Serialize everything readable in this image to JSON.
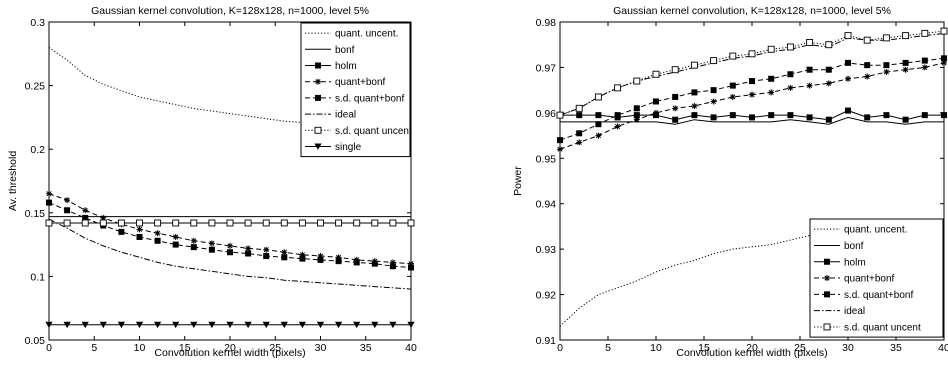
{
  "chart_data": [
    {
      "type": "line",
      "title": "Gaussian kernel convolution, K=128x128, n=1000, level 5%",
      "xlabel": "Convolution kernel width (pixels)",
      "ylabel": "Av. threshold",
      "xlim": [
        0,
        40
      ],
      "ylim": [
        0.05,
        0.3
      ],
      "xticks": [
        "0",
        "5",
        "10",
        "15",
        "20",
        "25",
        "30",
        "35",
        "40"
      ],
      "yticks": [
        "0.05",
        "0.1",
        "0.15",
        "0.2",
        "0.25",
        "0.3"
      ],
      "legend_position": "top-right",
      "x": [
        0,
        2,
        4,
        6,
        8,
        10,
        12,
        14,
        16,
        18,
        20,
        22,
        24,
        26,
        28,
        30,
        32,
        34,
        36,
        38,
        40
      ],
      "series": [
        {
          "name": "quant. uncent.",
          "style": "dotted",
          "marker": "none",
          "values": [
            0.28,
            0.27,
            0.258,
            0.251,
            0.246,
            0.241,
            0.238,
            0.235,
            0.232,
            0.23,
            0.228,
            0.226,
            0.224,
            0.222,
            0.221,
            0.22,
            0.219,
            0.217,
            0.216,
            0.215,
            0.213
          ]
        },
        {
          "name": "bonf",
          "style": "solid",
          "marker": "none",
          "values": [
            0.147,
            0.147,
            0.147,
            0.147,
            0.147,
            0.147,
            0.147,
            0.147,
            0.147,
            0.147,
            0.147,
            0.147,
            0.147,
            0.147,
            0.147,
            0.147,
            0.147,
            0.147,
            0.147,
            0.147,
            0.147
          ]
        },
        {
          "name": "holm",
          "style": "solid",
          "marker": "square-filled",
          "values": [
            0.142,
            0.142,
            0.142,
            0.142,
            0.142,
            0.142,
            0.142,
            0.142,
            0.142,
            0.142,
            0.142,
            0.142,
            0.142,
            0.142,
            0.142,
            0.142,
            0.142,
            0.142,
            0.142,
            0.142,
            0.142
          ]
        },
        {
          "name": "quant+bonf",
          "style": "dashed",
          "marker": "star",
          "values": [
            0.165,
            0.16,
            0.152,
            0.146,
            0.141,
            0.137,
            0.134,
            0.131,
            0.128,
            0.126,
            0.124,
            0.122,
            0.121,
            0.119,
            0.117,
            0.116,
            0.115,
            0.113,
            0.112,
            0.111,
            0.11
          ]
        },
        {
          "name": "s.d. quant+bonf",
          "style": "dashed",
          "marker": "square-filled",
          "values": [
            0.158,
            0.152,
            0.146,
            0.14,
            0.135,
            0.131,
            0.128,
            0.125,
            0.123,
            0.121,
            0.119,
            0.118,
            0.116,
            0.115,
            0.114,
            0.113,
            0.112,
            0.111,
            0.11,
            0.108,
            0.107
          ]
        },
        {
          "name": "ideal",
          "style": "dashdot",
          "marker": "none",
          "values": [
            0.145,
            0.138,
            0.13,
            0.124,
            0.119,
            0.115,
            0.111,
            0.108,
            0.106,
            0.104,
            0.102,
            0.1,
            0.099,
            0.097,
            0.096,
            0.095,
            0.094,
            0.093,
            0.092,
            0.091,
            0.09
          ]
        },
        {
          "name": "s.d. quant uncent",
          "style": "dotted",
          "marker": "square-open",
          "values": [
            0.142,
            0.142,
            0.142,
            0.142,
            0.142,
            0.142,
            0.142,
            0.142,
            0.142,
            0.142,
            0.142,
            0.142,
            0.142,
            0.142,
            0.142,
            0.142,
            0.142,
            0.142,
            0.142,
            0.142,
            0.142
          ]
        },
        {
          "name": "single",
          "style": "solid",
          "marker": "triangle-down",
          "values": [
            0.062,
            0.062,
            0.062,
            0.062,
            0.062,
            0.062,
            0.062,
            0.062,
            0.062,
            0.062,
            0.062,
            0.062,
            0.062,
            0.062,
            0.062,
            0.062,
            0.062,
            0.062,
            0.062,
            0.062,
            0.062
          ]
        }
      ]
    },
    {
      "type": "line",
      "title": "Gaussian kernel convolution, K=128x128, n=1000, level 5%",
      "xlabel": "Convolution kernel width (pixels)",
      "ylabel": "Power",
      "xlim": [
        0,
        40
      ],
      "ylim": [
        0.91,
        0.98
      ],
      "xticks": [
        "0",
        "5",
        "10",
        "15",
        "20",
        "25",
        "30",
        "35",
        "40"
      ],
      "yticks": [
        "0.91",
        "0.92",
        "0.93",
        "0.94",
        "0.95",
        "0.96",
        "0.97",
        "0.98"
      ],
      "legend_position": "bottom-right",
      "x": [
        0,
        2,
        4,
        6,
        8,
        10,
        12,
        14,
        16,
        18,
        20,
        22,
        24,
        26,
        28,
        30,
        32,
        34,
        36,
        38,
        40
      ],
      "series": [
        {
          "name": "quant. uncent.",
          "style": "dotted",
          "marker": "none",
          "values": [
            0.913,
            0.917,
            0.92,
            0.9215,
            0.923,
            0.925,
            0.9265,
            0.9275,
            0.929,
            0.93,
            0.9305,
            0.931,
            0.932,
            0.933,
            0.9335,
            0.934,
            0.9345,
            0.935,
            0.9355,
            0.936,
            0.9365
          ]
        },
        {
          "name": "bonf",
          "style": "solid",
          "marker": "none",
          "values": [
            0.958,
            0.958,
            0.958,
            0.958,
            0.958,
            0.958,
            0.9575,
            0.9585,
            0.958,
            0.958,
            0.958,
            0.958,
            0.9585,
            0.958,
            0.9575,
            0.959,
            0.958,
            0.958,
            0.9575,
            0.958,
            0.958
          ]
        },
        {
          "name": "holm",
          "style": "solid",
          "marker": "square-filled",
          "values": [
            0.9595,
            0.9595,
            0.9595,
            0.959,
            0.9595,
            0.9595,
            0.9585,
            0.9595,
            0.959,
            0.9595,
            0.959,
            0.9595,
            0.9595,
            0.959,
            0.9585,
            0.9605,
            0.959,
            0.9595,
            0.9585,
            0.9595,
            0.9595
          ]
        },
        {
          "name": "quant+bonf",
          "style": "dashed",
          "marker": "star",
          "values": [
            0.952,
            0.9535,
            0.955,
            0.957,
            0.9585,
            0.96,
            0.961,
            0.9615,
            0.9625,
            0.9635,
            0.964,
            0.9645,
            0.9655,
            0.966,
            0.9665,
            0.9675,
            0.968,
            0.969,
            0.9695,
            0.97,
            0.971
          ]
        },
        {
          "name": "s.d. quant+bonf",
          "style": "dashed",
          "marker": "square-filled",
          "values": [
            0.954,
            0.9555,
            0.9575,
            0.9595,
            0.961,
            0.9625,
            0.9635,
            0.9645,
            0.965,
            0.966,
            0.967,
            0.9675,
            0.9685,
            0.9695,
            0.9695,
            0.971,
            0.9705,
            0.9705,
            0.971,
            0.9715,
            0.972
          ]
        },
        {
          "name": "ideal",
          "style": "dashdot",
          "marker": "none",
          "values": [
            0.9595,
            0.961,
            0.9635,
            0.9655,
            0.967,
            0.968,
            0.969,
            0.97,
            0.971,
            0.972,
            0.9725,
            0.9735,
            0.974,
            0.975,
            0.9745,
            0.9765,
            0.976,
            0.976,
            0.9765,
            0.977,
            0.9775
          ]
        },
        {
          "name": "s.d. quant uncent",
          "style": "dotted",
          "marker": "square-open",
          "values": [
            0.9595,
            0.961,
            0.9635,
            0.9655,
            0.967,
            0.9685,
            0.9695,
            0.9705,
            0.9715,
            0.9725,
            0.973,
            0.974,
            0.9745,
            0.9755,
            0.975,
            0.977,
            0.976,
            0.9765,
            0.977,
            0.9775,
            0.978
          ]
        }
      ]
    }
  ]
}
